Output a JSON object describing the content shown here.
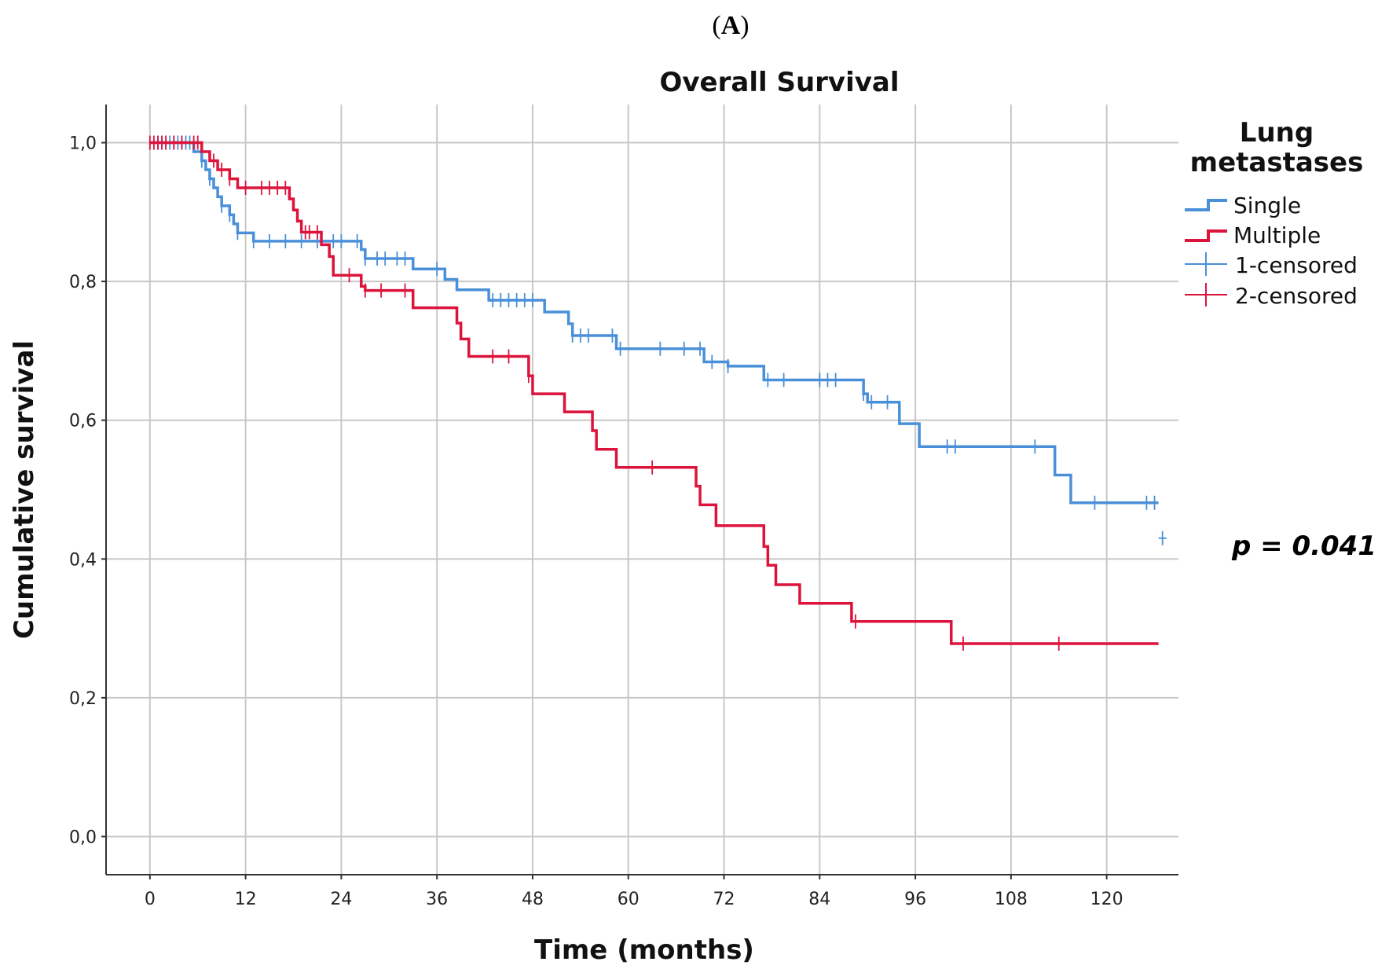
{
  "panel_label": {
    "open": "(",
    "letter": "A",
    "close": ")"
  },
  "annotation": "p = 0.041",
  "colors": {
    "single": "#4a90d9",
    "multiple": "#dc143c",
    "grid": "#c8c8c8",
    "axis": "#333333"
  },
  "chart_data": {
    "type": "line",
    "title": "Overall Survival",
    "xlabel": "Time (months)",
    "ylabel": "Cumulative survival",
    "xlim": [
      -5.5,
      129
    ],
    "ylim": [
      -0.055,
      1.055
    ],
    "xticks": [
      "0",
      "12",
      "24",
      "36",
      "48",
      "60",
      "72",
      "84",
      "96",
      "108",
      "120"
    ],
    "xtick_values": [
      0,
      12,
      24,
      36,
      48,
      60,
      72,
      84,
      96,
      108,
      120
    ],
    "yticks": [
      "0,0",
      "0,2",
      "0,4",
      "0,6",
      "0,8",
      "1,0"
    ],
    "ytick_values": [
      0,
      0.2,
      0.4,
      0.6,
      0.8,
      1.0
    ],
    "grid": true,
    "legend": {
      "title_line1": "Lung",
      "title_line2": "metastases",
      "entries": [
        "Single",
        "Multiple",
        "1-censored",
        "2-censored"
      ],
      "position": "right"
    },
    "series": [
      {
        "name": "Single",
        "color": "#4a90d9",
        "steps": [
          [
            0,
            1.0
          ],
          [
            5.5,
            0.987
          ],
          [
            6.5,
            0.974
          ],
          [
            7.0,
            0.961
          ],
          [
            7.5,
            0.948
          ],
          [
            8.0,
            0.935
          ],
          [
            8.5,
            0.922
          ],
          [
            9.0,
            0.909
          ],
          [
            10.0,
            0.896
          ],
          [
            10.5,
            0.883
          ],
          [
            11.0,
            0.87
          ],
          [
            13.0,
            0.858
          ],
          [
            26.5,
            0.846
          ],
          [
            27.0,
            0.833
          ],
          [
            33.0,
            0.818
          ],
          [
            37.0,
            0.803
          ],
          [
            38.5,
            0.788
          ],
          [
            42.5,
            0.773
          ],
          [
            49.5,
            0.756
          ],
          [
            52.5,
            0.739
          ],
          [
            53.0,
            0.722
          ],
          [
            58.5,
            0.703
          ],
          [
            69.5,
            0.684
          ],
          [
            72.5,
            0.678
          ],
          [
            77.0,
            0.658
          ],
          [
            89.5,
            0.638
          ],
          [
            90.0,
            0.626
          ],
          [
            94.0,
            0.595
          ],
          [
            96.5,
            0.562
          ],
          [
            113.5,
            0.521
          ],
          [
            115.5,
            0.481
          ],
          [
            126.5,
            0.481
          ]
        ],
        "censored_x": [
          1,
          1.5,
          2,
          2.5,
          3,
          3.5,
          4,
          4.5,
          5,
          6.5,
          7.5,
          9,
          10,
          11,
          13,
          15,
          17,
          19,
          21,
          23,
          24,
          26,
          27,
          28.5,
          29.5,
          31,
          32,
          36,
          43,
          44,
          45,
          46,
          47,
          48,
          53,
          54,
          55,
          58,
          59,
          64,
          67,
          69,
          70.5,
          72.5,
          77.5,
          79.5,
          84,
          85,
          86,
          89.5,
          90.5,
          92.5,
          100,
          101,
          111,
          118.5,
          125,
          126
        ],
        "extra_censored": [
          [
            127,
            0.43
          ]
        ]
      },
      {
        "name": "Multiple",
        "color": "#dc143c",
        "steps": [
          [
            0,
            1.0
          ],
          [
            6.5,
            0.987
          ],
          [
            7.5,
            0.974
          ],
          [
            8.5,
            0.961
          ],
          [
            10.0,
            0.948
          ],
          [
            11.0,
            0.935
          ],
          [
            17.5,
            0.919
          ],
          [
            18.0,
            0.903
          ],
          [
            18.5,
            0.887
          ],
          [
            19.0,
            0.871
          ],
          [
            21.5,
            0.853
          ],
          [
            22.5,
            0.836
          ],
          [
            23.0,
            0.809
          ],
          [
            26.5,
            0.793
          ],
          [
            27.0,
            0.787
          ],
          [
            33.0,
            0.762
          ],
          [
            38.5,
            0.74
          ],
          [
            39.0,
            0.717
          ],
          [
            40.0,
            0.692
          ],
          [
            47.5,
            0.664
          ],
          [
            48.0,
            0.638
          ],
          [
            52.0,
            0.612
          ],
          [
            55.5,
            0.585
          ],
          [
            56.0,
            0.558
          ],
          [
            58.5,
            0.532
          ],
          [
            68.5,
            0.505
          ],
          [
            69.0,
            0.478
          ],
          [
            71.0,
            0.448
          ],
          [
            77.0,
            0.418
          ],
          [
            77.5,
            0.391
          ],
          [
            78.5,
            0.363
          ],
          [
            81.5,
            0.336
          ],
          [
            88.0,
            0.31
          ],
          [
            100.5,
            0.278
          ],
          [
            126.5,
            0.278
          ]
        ],
        "censored_x": [
          0,
          0.5,
          1,
          1.5,
          2,
          3,
          4,
          5.5,
          6,
          8,
          9,
          10,
          12,
          14,
          15,
          16,
          17,
          19.5,
          20,
          21,
          25,
          27,
          29,
          32,
          43,
          45,
          47.5,
          63,
          88.5,
          102,
          114
        ]
      }
    ]
  }
}
